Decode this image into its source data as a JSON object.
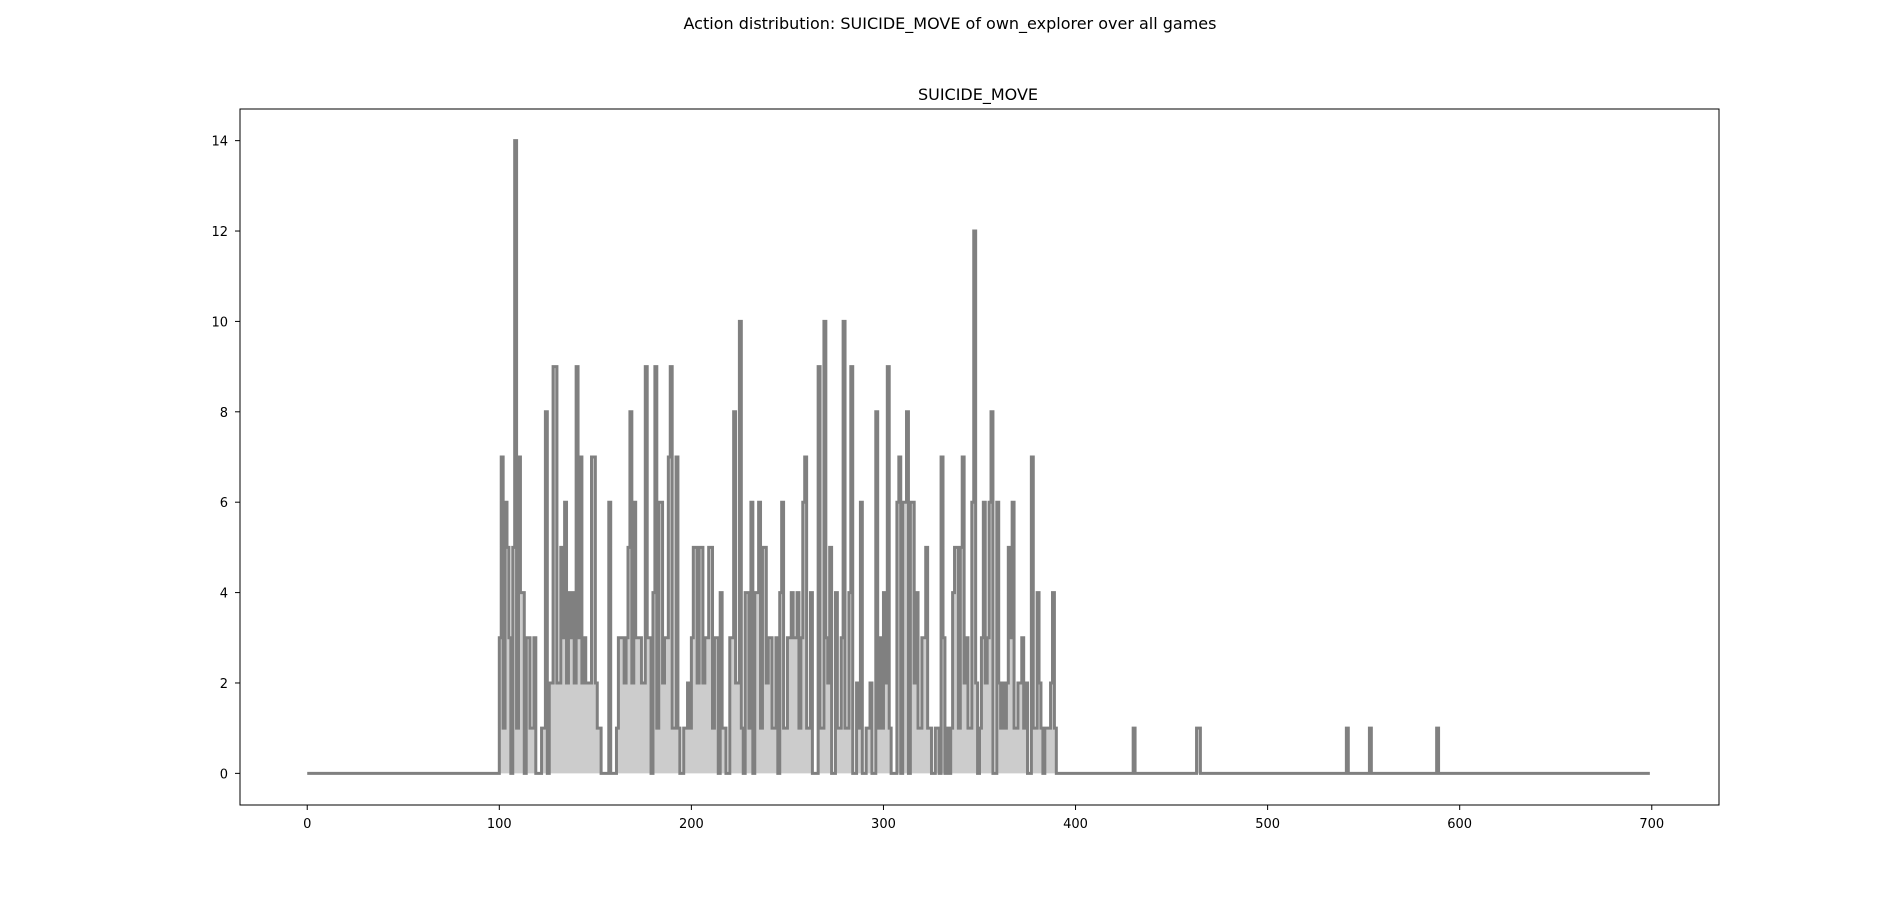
{
  "figure": {
    "suptitle": "Action distribution: SUICIDE_MOVE of own_explorer over all games"
  },
  "chart_data": {
    "type": "area",
    "title": "SUICIDE_MOVE",
    "xlabel": "",
    "ylabel": "",
    "xlim": [
      -35,
      735
    ],
    "ylim": [
      -0.7,
      14.7
    ],
    "xticks": [
      0,
      100,
      200,
      300,
      400,
      500,
      600,
      700
    ],
    "yticks": [
      0,
      2,
      4,
      6,
      8,
      10,
      12,
      14
    ],
    "grid": false,
    "legend": "none",
    "colors": {
      "line": "#808080",
      "fill": "#cccccc",
      "axes": "#000000"
    },
    "series": [
      {
        "points": [
          [
            0,
            0
          ],
          [
            99,
            0
          ],
          [
            100,
            3
          ],
          [
            101,
            7
          ],
          [
            102,
            1
          ],
          [
            103,
            6
          ],
          [
            104,
            5
          ],
          [
            105,
            3
          ],
          [
            106,
            0
          ],
          [
            107,
            5
          ],
          [
            108,
            14
          ],
          [
            109,
            1
          ],
          [
            110,
            7
          ],
          [
            111,
            4
          ],
          [
            113,
            0
          ],
          [
            114,
            3
          ],
          [
            116,
            1
          ],
          [
            118,
            3
          ],
          [
            119,
            0
          ],
          [
            122,
            1
          ],
          [
            124,
            8
          ],
          [
            125,
            0
          ],
          [
            126,
            2
          ],
          [
            128,
            9
          ],
          [
            130,
            2
          ],
          [
            132,
            5
          ],
          [
            133,
            3
          ],
          [
            134,
            6
          ],
          [
            135,
            2
          ],
          [
            136,
            4
          ],
          [
            137,
            3
          ],
          [
            138,
            4
          ],
          [
            139,
            2
          ],
          [
            140,
            9
          ],
          [
            141,
            3
          ],
          [
            142,
            7
          ],
          [
            143,
            2
          ],
          [
            144,
            3
          ],
          [
            145,
            2
          ],
          [
            148,
            7
          ],
          [
            150,
            2
          ],
          [
            151,
            1
          ],
          [
            153,
            0
          ],
          [
            157,
            6
          ],
          [
            158,
            0
          ],
          [
            161,
            1
          ],
          [
            162,
            3
          ],
          [
            165,
            2
          ],
          [
            166,
            3
          ],
          [
            167,
            5
          ],
          [
            168,
            8
          ],
          [
            169,
            2
          ],
          [
            170,
            6
          ],
          [
            171,
            3
          ],
          [
            174,
            2
          ],
          [
            176,
            9
          ],
          [
            177,
            3
          ],
          [
            179,
            0
          ],
          [
            180,
            4
          ],
          [
            181,
            9
          ],
          [
            182,
            1
          ],
          [
            183,
            6
          ],
          [
            185,
            2
          ],
          [
            186,
            3
          ],
          [
            188,
            7
          ],
          [
            189,
            9
          ],
          [
            190,
            1
          ],
          [
            192,
            7
          ],
          [
            193,
            1
          ],
          [
            194,
            0
          ],
          [
            196,
            1
          ],
          [
            198,
            2
          ],
          [
            199,
            1
          ],
          [
            200,
            3
          ],
          [
            201,
            5
          ],
          [
            203,
            2
          ],
          [
            204,
            5
          ],
          [
            206,
            2
          ],
          [
            207,
            3
          ],
          [
            209,
            5
          ],
          [
            211,
            1
          ],
          [
            212,
            3
          ],
          [
            214,
            0
          ],
          [
            215,
            4
          ],
          [
            216,
            1
          ],
          [
            218,
            0
          ],
          [
            220,
            3
          ],
          [
            222,
            8
          ],
          [
            223,
            2
          ],
          [
            225,
            10
          ],
          [
            226,
            1
          ],
          [
            227,
            0
          ],
          [
            228,
            4
          ],
          [
            230,
            1
          ],
          [
            231,
            6
          ],
          [
            232,
            0
          ],
          [
            233,
            4
          ],
          [
            235,
            6
          ],
          [
            236,
            1
          ],
          [
            237,
            5
          ],
          [
            239,
            2
          ],
          [
            240,
            3
          ],
          [
            242,
            1
          ],
          [
            244,
            3
          ],
          [
            245,
            0
          ],
          [
            246,
            4
          ],
          [
            247,
            6
          ],
          [
            248,
            1
          ],
          [
            250,
            3
          ],
          [
            252,
            4
          ],
          [
            253,
            3
          ],
          [
            255,
            4
          ],
          [
            256,
            1
          ],
          [
            257,
            3
          ],
          [
            258,
            6
          ],
          [
            259,
            7
          ],
          [
            260,
            1
          ],
          [
            262,
            4
          ],
          [
            263,
            0
          ],
          [
            266,
            9
          ],
          [
            267,
            1
          ],
          [
            269,
            10
          ],
          [
            270,
            3
          ],
          [
            271,
            2
          ],
          [
            272,
            5
          ],
          [
            273,
            0
          ],
          [
            275,
            4
          ],
          [
            276,
            1
          ],
          [
            278,
            3
          ],
          [
            279,
            10
          ],
          [
            280,
            1
          ],
          [
            282,
            4
          ],
          [
            283,
            9
          ],
          [
            284,
            0
          ],
          [
            286,
            2
          ],
          [
            287,
            1
          ],
          [
            288,
            6
          ],
          [
            289,
            0
          ],
          [
            291,
            1
          ],
          [
            293,
            2
          ],
          [
            294,
            0
          ],
          [
            296,
            8
          ],
          [
            297,
            1
          ],
          [
            298,
            3
          ],
          [
            299,
            1
          ],
          [
            300,
            4
          ],
          [
            301,
            2
          ],
          [
            302,
            9
          ],
          [
            303,
            1
          ],
          [
            304,
            0
          ],
          [
            307,
            6
          ],
          [
            308,
            7
          ],
          [
            309,
            0
          ],
          [
            310,
            6
          ],
          [
            312,
            8
          ],
          [
            313,
            0
          ],
          [
            314,
            6
          ],
          [
            316,
            2
          ],
          [
            317,
            4
          ],
          [
            318,
            1
          ],
          [
            320,
            3
          ],
          [
            322,
            5
          ],
          [
            323,
            1
          ],
          [
            325,
            0
          ],
          [
            327,
            1
          ],
          [
            329,
            0
          ],
          [
            330,
            7
          ],
          [
            331,
            3
          ],
          [
            332,
            0
          ],
          [
            333,
            1
          ],
          [
            334,
            0
          ],
          [
            335,
            1
          ],
          [
            336,
            4
          ],
          [
            337,
            5
          ],
          [
            339,
            1
          ],
          [
            340,
            5
          ],
          [
            341,
            7
          ],
          [
            342,
            2
          ],
          [
            343,
            3
          ],
          [
            344,
            1
          ],
          [
            346,
            6
          ],
          [
            347,
            12
          ],
          [
            348,
            2
          ],
          [
            349,
            0
          ],
          [
            350,
            1
          ],
          [
            351,
            3
          ],
          [
            352,
            6
          ],
          [
            353,
            2
          ],
          [
            354,
            3
          ],
          [
            355,
            6
          ],
          [
            356,
            8
          ],
          [
            357,
            0
          ],
          [
            359,
            6
          ],
          [
            360,
            2
          ],
          [
            361,
            1
          ],
          [
            362,
            2
          ],
          [
            363,
            1
          ],
          [
            364,
            2
          ],
          [
            365,
            5
          ],
          [
            366,
            3
          ],
          [
            367,
            6
          ],
          [
            368,
            1
          ],
          [
            370,
            2
          ],
          [
            372,
            3
          ],
          [
            373,
            1
          ],
          [
            374,
            2
          ],
          [
            375,
            0
          ],
          [
            377,
            7
          ],
          [
            378,
            1
          ],
          [
            380,
            4
          ],
          [
            381,
            2
          ],
          [
            382,
            1
          ],
          [
            383,
            0
          ],
          [
            384,
            1
          ],
          [
            387,
            2
          ],
          [
            388,
            4
          ],
          [
            389,
            1
          ],
          [
            390,
            0
          ],
          [
            400,
            0
          ],
          [
            430,
            1
          ],
          [
            431,
            0
          ],
          [
            463,
            1
          ],
          [
            465,
            0
          ],
          [
            541,
            1
          ],
          [
            542,
            0
          ],
          [
            553,
            1
          ],
          [
            554,
            0
          ],
          [
            588,
            1
          ],
          [
            589,
            0
          ],
          [
            699,
            0
          ]
        ]
      }
    ]
  }
}
